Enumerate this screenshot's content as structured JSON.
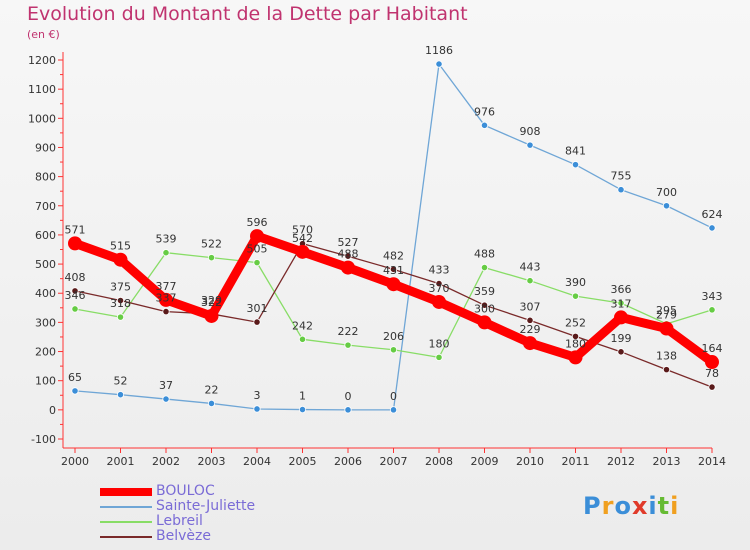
{
  "title": "Evolution du Montant de la Dette par Habitant",
  "unit": "(en €)",
  "logo": {
    "letters": [
      {
        "ch": "P",
        "color": "#3b8ed8"
      },
      {
        "ch": "r",
        "color": "#f0a020"
      },
      {
        "ch": "o",
        "color": "#3b8ed8"
      },
      {
        "ch": "x",
        "color": "#e03a2a"
      },
      {
        "ch": "i",
        "color": "#3b8ed8"
      },
      {
        "ch": "t",
        "color": "#66bb33"
      },
      {
        "ch": "i",
        "color": "#f0a020"
      }
    ]
  },
  "chart_data": {
    "type": "line",
    "title": "Evolution du Montant de la Dette par Habitant",
    "ylabel": "(en €)",
    "x": [
      2000,
      2001,
      2002,
      2003,
      2004,
      2005,
      2006,
      2007,
      2008,
      2009,
      2010,
      2011,
      2012,
      2013,
      2014
    ],
    "ylim": [
      -100,
      1200
    ],
    "yticks": [
      -100,
      0,
      100,
      200,
      300,
      400,
      500,
      600,
      700,
      800,
      900,
      1000,
      1100,
      1200
    ],
    "grid": false,
    "legend_position": "bottom-left",
    "series": [
      {
        "name": "BOULOC",
        "color": "#ff0000",
        "marker": "#ff0000",
        "values": [
          571,
          515,
          377,
          322,
          596,
          542,
          488,
          431,
          370,
          300,
          229,
          180,
          317,
          279,
          164
        ]
      },
      {
        "name": "Sainte-Juliette",
        "color": "#6fa6d6",
        "marker": "#3b8ed8",
        "values": [
          65,
          52,
          37,
          22,
          3,
          1,
          0,
          0,
          1186,
          976,
          908,
          841,
          755,
          700,
          624
        ]
      },
      {
        "name": "Lebreil",
        "color": "#88dd66",
        "marker": "#66cc44",
        "values": [
          346,
          318,
          539,
          522,
          505,
          242,
          222,
          206,
          180,
          488,
          443,
          390,
          366,
          295,
          343
        ]
      },
      {
        "name": "Belvèze",
        "color": "#7a2a2a",
        "marker": "#5a1a1a",
        "values": [
          408,
          375,
          337,
          329,
          301,
          570,
          527,
          482,
          433,
          359,
          307,
          252,
          199,
          138,
          78
        ]
      }
    ]
  }
}
